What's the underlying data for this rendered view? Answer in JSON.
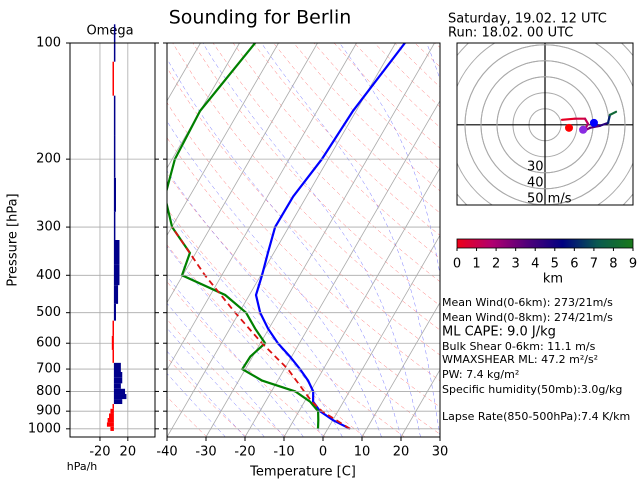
{
  "chart_data": [
    {
      "type": "skewt",
      "title": "Sounding for Berlin",
      "xlabel": "Temperature [C]",
      "ylabel": "Pressure [hPa]",
      "xlim": [
        -40,
        30
      ],
      "ylim": [
        1050,
        100
      ],
      "ylog": true,
      "grid": true,
      "xticks": [
        -40,
        -30,
        -20,
        -10,
        0,
        10,
        20,
        30
      ],
      "yticks": [
        100,
        200,
        300,
        400,
        500,
        600,
        700,
        800,
        900,
        1000
      ],
      "series": [
        {
          "color": "#0000ff",
          "pressure": [
            1000,
            950,
            900,
            850,
            800,
            750,
            700,
            650,
            600,
            550,
            500,
            450,
            400,
            350,
            300,
            250,
            200,
            150,
            100
          ],
          "values": [
            5.7,
            0.1,
            -4.6,
            -7.8,
            -9.3,
            -12.2,
            -16,
            -20.4,
            -25.5,
            -30.2,
            -34.6,
            -38.3,
            -39.7,
            -41.5,
            -43.5,
            -43.4,
            -41.6,
            -40.8,
            -37.6
          ]
        },
        {
          "color": "#008000",
          "pressure": [
            1000,
            950,
            900,
            850,
            800,
            750,
            700,
            650,
            600,
            550,
            500,
            450,
            400,
            350,
            300,
            250,
            200,
            150,
            100
          ],
          "values": [
            -2.5,
            -3.7,
            -5.1,
            -8.6,
            -13.9,
            -24,
            -30.8,
            -30.6,
            -28.8,
            -33.5,
            -38.2,
            -46.2,
            -60.2,
            -61.5,
            -69.9,
            -76.3,
            -79.3,
            -80,
            -76
          ]
        },
        {
          "color": "#dd1111",
          "dashed": true,
          "pressure": [
            1000,
            900,
            850,
            800,
            700,
            600,
            500,
            400,
            300
          ],
          "values": [
            5.7,
            -4.1,
            -8.1,
            -11.6,
            -19.1,
            -29.6,
            -41,
            -54.3,
            -69.9
          ]
        }
      ]
    },
    {
      "type": "omega",
      "title": "Omega",
      "xlabel": "hPa/h",
      "xlim": [
        -63,
        59
      ],
      "xticks": [
        -20,
        20
      ],
      "negative_color": "#ff0000",
      "positive_color": "#00008b",
      "pressure": [
        1000,
        975,
        950,
        925,
        900,
        875,
        850,
        825,
        800,
        775,
        750,
        725,
        700,
        650,
        600,
        550,
        500,
        450,
        400,
        350,
        300,
        250,
        200,
        150,
        125,
        100
      ],
      "values": [
        -5,
        -10,
        -9,
        -7,
        -5,
        -2,
        12,
        18,
        16,
        10,
        12,
        12,
        10,
        -2,
        -3,
        -2,
        3,
        6,
        8,
        8,
        0,
        3,
        2,
        1,
        -2,
        0
      ]
    },
    {
      "type": "hodograph",
      "xlim": [
        -55,
        55
      ],
      "ylim": [
        -50,
        51
      ],
      "rticks": [
        30,
        40,
        {
          "value": 50,
          "label": "50 m/s"
        }
      ],
      "u": [
        10.6,
        18.8,
        25,
        26.9,
        24.4,
        28.1,
        34.4,
        39.4,
        40.6,
        44.4
      ],
      "v": [
        3.1,
        3.8,
        3.8,
        0.6,
        -3.8,
        -1.9,
        -0.6,
        1.2,
        6.2,
        8.1
      ],
      "heights": [
        0,
        0.5,
        1,
        1.5,
        2,
        3,
        4,
        5,
        7,
        9
      ],
      "markers": [
        {
          "u": 15,
          "v": -1.9,
          "color": "#ff0000"
        },
        {
          "u": 23.8,
          "v": -3.1,
          "color": "#8a2be2"
        },
        {
          "u": 30.6,
          "v": 1.2,
          "color": "#0000ff"
        }
      ]
    },
    {
      "type": "colorbar",
      "label": "km",
      "lim": [
        0,
        9
      ],
      "ticks": [
        0,
        1,
        2,
        3,
        4,
        5,
        6,
        7,
        8,
        9
      ],
      "colors": [
        "#ee0018",
        "#b00070",
        "#50007a",
        "#000080",
        "#0a5a50",
        "#1a7a1a"
      ]
    }
  ],
  "header": {
    "valid": "Saturday, 19.02. 12 UTC",
    "run": "Run: 18.02. 00 UTC"
  },
  "stats": [
    "Mean Wind(0-6km): 273/21m/s",
    "Mean Wind(0-8km): 274/21m/s",
    "ML CAPE: 9.0 J/kg",
    "Bulk Shear 0-6km: 11.1 m/s",
    "WMAXSHEAR ML: 47.2 m²/s²",
    "PW: 7.4 kg/m²",
    "Specific humidity(50mb):3.0g/kg",
    "Lapse Rate(850-500hPa):7.4 K/km"
  ]
}
